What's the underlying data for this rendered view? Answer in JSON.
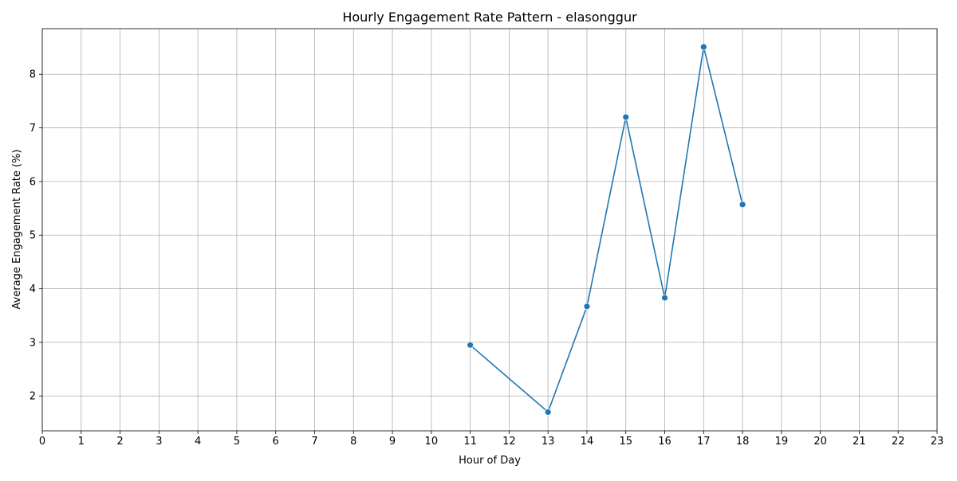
{
  "chart_data": {
    "type": "line",
    "title": "Hourly Engagement Rate Pattern - elasonggur",
    "xlabel": "Hour of Day",
    "ylabel": "Average Engagement Rate (%)",
    "x_ticks": [
      "0",
      "1",
      "2",
      "3",
      "4",
      "5",
      "6",
      "7",
      "8",
      "9",
      "10",
      "11",
      "12",
      "13",
      "14",
      "15",
      "16",
      "17",
      "18",
      "19",
      "20",
      "21",
      "22",
      "23"
    ],
    "y_ticks": [
      "2",
      "3",
      "4",
      "5",
      "6",
      "7",
      "8"
    ],
    "xlim": [
      0,
      23
    ],
    "ylim": [
      1.35,
      8.85
    ],
    "grid": true,
    "line_color": "#1f77b4",
    "grid_color": "#b0b0b0",
    "series": [
      {
        "x": [
          11,
          13,
          14,
          15,
          16,
          17,
          18
        ],
        "values": [
          2.95,
          1.7,
          3.67,
          7.2,
          3.83,
          8.51,
          5.57
        ]
      }
    ]
  }
}
